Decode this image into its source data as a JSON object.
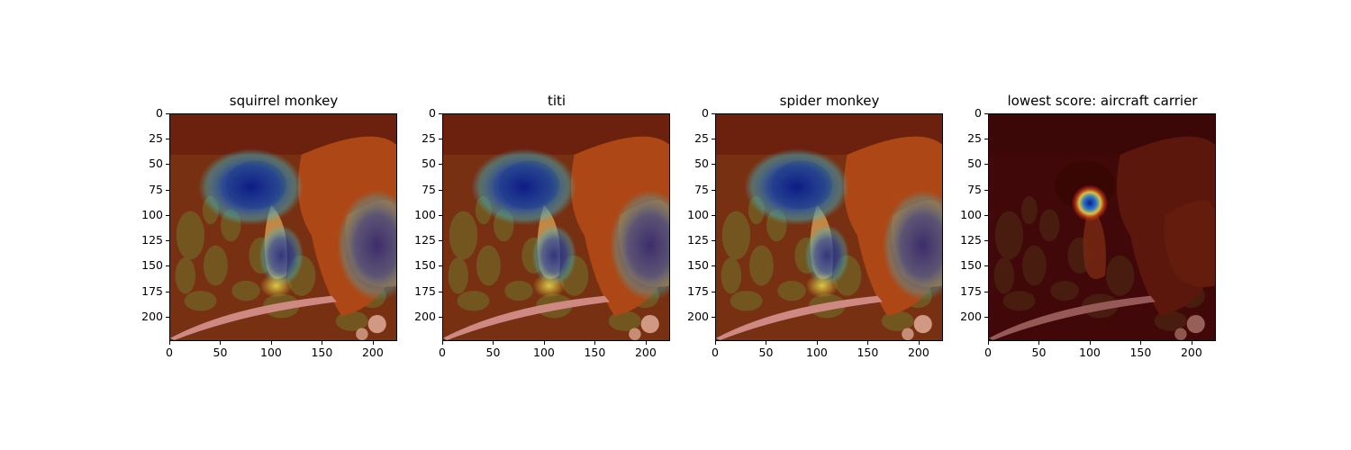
{
  "panels": [
    {
      "title": "squirrel monkey",
      "heatmap": "face"
    },
    {
      "title": "titi",
      "heatmap": "face"
    },
    {
      "title": "spider monkey",
      "heatmap": "face"
    },
    {
      "title": "lowest score: aircraft carrier",
      "heatmap": "spot"
    }
  ],
  "axes": {
    "y_ticks": [
      "0",
      "25",
      "50",
      "75",
      "100",
      "125",
      "150",
      "175",
      "200"
    ],
    "x_ticks": [
      "0",
      "50",
      "100",
      "150",
      "200"
    ],
    "y_values": [
      0,
      25,
      50,
      75,
      100,
      125,
      150,
      175,
      200
    ],
    "x_values": [
      0,
      50,
      100,
      150,
      200
    ],
    "extent": [
      0,
      224
    ]
  },
  "colors": {
    "background_warm": "#7a2a10",
    "monkey_fur": "#b0501a",
    "heat_blue": "#0a1a8c",
    "heat_cyan": "#3fb6c8",
    "heat_yellow": "#e6d84a",
    "leaf_green": "#6a6a2a",
    "branch": "#d8a0a0"
  }
}
